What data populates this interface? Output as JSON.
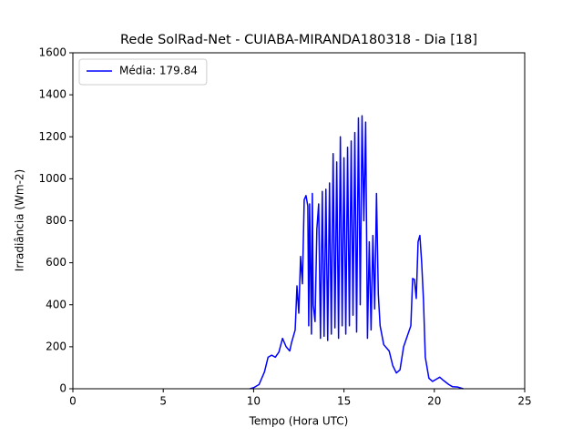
{
  "chart_data": {
    "type": "line",
    "title": "Rede SolRad-Net - CUIABA-MIRANDA180318 - Dia [18]",
    "x_label": "Tempo (Hora UTC)",
    "y_label": "Irradiância (Wm-2)",
    "xlim": [
      0,
      25
    ],
    "ylim": [
      0,
      1600
    ],
    "xticks": [
      0,
      5,
      10,
      15,
      20,
      25
    ],
    "yticks": [
      0,
      200,
      400,
      600,
      800,
      1000,
      1200,
      1400,
      1600
    ],
    "legend": "upper left",
    "series": [
      {
        "name": "Média: 179.84",
        "color": "#0000ff",
        "x": [
          9.8,
          10,
          10.3,
          10.6,
          10.8,
          11,
          11.2,
          11.4,
          11.6,
          11.8,
          12,
          12.1,
          12.3,
          12.4,
          12.5,
          12.6,
          12.7,
          12.8,
          12.9,
          13.0,
          13.05,
          13.1,
          13.2,
          13.25,
          13.3,
          13.4,
          13.5,
          13.6,
          13.7,
          13.8,
          13.9,
          14.0,
          14.1,
          14.2,
          14.3,
          14.4,
          14.5,
          14.6,
          14.7,
          14.8,
          14.9,
          15.0,
          15.1,
          15.2,
          15.3,
          15.4,
          15.5,
          15.6,
          15.7,
          15.8,
          15.9,
          16.0,
          16.1,
          16.2,
          16.3,
          16.4,
          16.5,
          16.6,
          16.7,
          16.8,
          16.9,
          17.0,
          17.2,
          17.5,
          17.7,
          17.9,
          18.1,
          18.3,
          18.5,
          18.7,
          18.8,
          18.9,
          19.0,
          19.1,
          19.2,
          19.3,
          19.4,
          19.5,
          19.7,
          19.9,
          20.1,
          20.3,
          20.5,
          20.8,
          21.0,
          21.3,
          21.6
        ],
        "values": [
          0,
          5,
          20,
          80,
          150,
          160,
          150,
          175,
          240,
          200,
          180,
          220,
          280,
          490,
          360,
          630,
          500,
          900,
          920,
          870,
          300,
          880,
          260,
          930,
          400,
          320,
          760,
          880,
          240,
          940,
          250,
          950,
          230,
          980,
          260,
          1120,
          290,
          1080,
          240,
          1200,
          300,
          1100,
          260,
          1150,
          300,
          1180,
          350,
          1220,
          270,
          1290,
          400,
          1300,
          800,
          1270,
          240,
          700,
          280,
          730,
          380,
          930,
          450,
          300,
          210,
          180,
          110,
          75,
          90,
          200,
          250,
          300,
          525,
          520,
          430,
          700,
          730,
          600,
          420,
          150,
          50,
          35,
          45,
          55,
          40,
          20,
          10,
          8,
          0
        ]
      }
    ]
  }
}
